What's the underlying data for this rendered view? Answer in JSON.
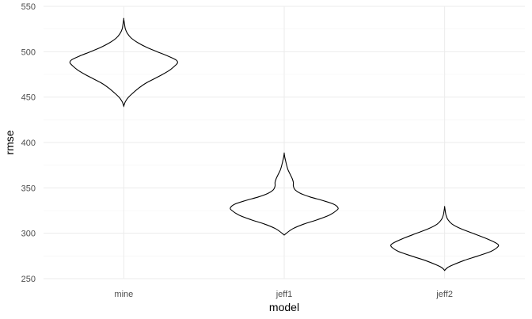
{
  "chart_data": {
    "type": "violin",
    "xlabel": "model",
    "ylabel": "rmse",
    "categories": [
      "mine",
      "jeff1",
      "jeff2"
    ],
    "ylim": [
      250,
      550
    ],
    "y_ticks": [
      250,
      300,
      350,
      400,
      450,
      500,
      550
    ],
    "grid": true,
    "theme": "minimal",
    "violins": [
      {
        "category": "mine",
        "ymin": 440,
        "ymax": 536,
        "profile": [
          [
            440,
            0.0
          ],
          [
            445,
            0.03
          ],
          [
            450,
            0.09
          ],
          [
            455,
            0.18
          ],
          [
            460,
            0.28
          ],
          [
            465,
            0.4
          ],
          [
            470,
            0.56
          ],
          [
            475,
            0.72
          ],
          [
            480,
            0.86
          ],
          [
            485,
            0.96
          ],
          [
            488,
            1.0
          ],
          [
            491,
            0.97
          ],
          [
            495,
            0.83
          ],
          [
            500,
            0.62
          ],
          [
            505,
            0.42
          ],
          [
            510,
            0.26
          ],
          [
            515,
            0.14
          ],
          [
            520,
            0.07
          ],
          [
            525,
            0.03
          ],
          [
            530,
            0.015
          ],
          [
            536,
            0.0
          ]
        ]
      },
      {
        "category": "jeff1",
        "ymin": 298,
        "ymax": 388,
        "profile": [
          [
            298,
            0.0
          ],
          [
            300,
            0.04
          ],
          [
            305,
            0.16
          ],
          [
            310,
            0.36
          ],
          [
            315,
            0.62
          ],
          [
            320,
            0.84
          ],
          [
            325,
            0.97
          ],
          [
            328,
            1.0
          ],
          [
            332,
            0.92
          ],
          [
            336,
            0.72
          ],
          [
            340,
            0.48
          ],
          [
            344,
            0.3
          ],
          [
            348,
            0.2
          ],
          [
            352,
            0.17
          ],
          [
            356,
            0.17
          ],
          [
            360,
            0.15
          ],
          [
            365,
            0.11
          ],
          [
            370,
            0.07
          ],
          [
            375,
            0.045
          ],
          [
            380,
            0.025
          ],
          [
            384,
            0.01
          ],
          [
            388,
            0.0
          ]
        ]
      },
      {
        "category": "jeff2",
        "ymin": 259,
        "ymax": 329,
        "profile": [
          [
            259,
            0.0
          ],
          [
            262,
            0.05
          ],
          [
            265,
            0.15
          ],
          [
            270,
            0.36
          ],
          [
            275,
            0.62
          ],
          [
            280,
            0.86
          ],
          [
            284,
            0.97
          ],
          [
            287,
            1.0
          ],
          [
            290,
            0.93
          ],
          [
            295,
            0.74
          ],
          [
            300,
            0.52
          ],
          [
            305,
            0.3
          ],
          [
            310,
            0.14
          ],
          [
            315,
            0.06
          ],
          [
            320,
            0.025
          ],
          [
            325,
            0.01
          ],
          [
            329,
            0.0
          ]
        ]
      }
    ]
  }
}
